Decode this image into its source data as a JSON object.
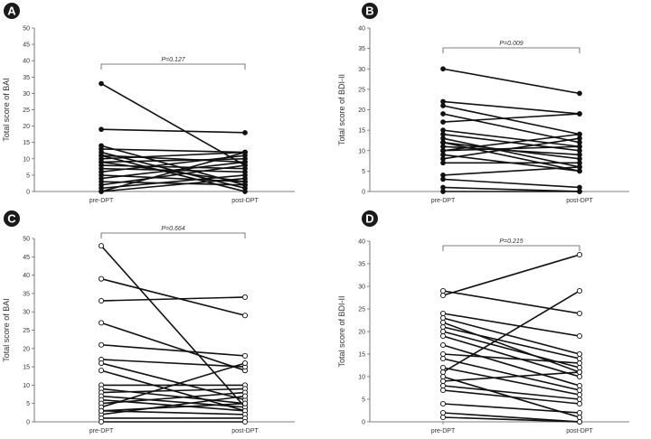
{
  "chart_data": [
    {
      "panel": "A",
      "type": "line",
      "ylabel": "Total score of BAI",
      "categories": [
        "pre-DPT",
        "post-DPT"
      ],
      "ylim": [
        0,
        50
      ],
      "yticks": [
        0,
        5,
        10,
        15,
        20,
        25,
        30,
        35,
        40,
        45,
        50
      ],
      "marker": "filled",
      "p_value": "P=0.127",
      "pairs": [
        [
          33,
          8
        ],
        [
          19,
          18
        ],
        [
          14,
          2
        ],
        [
          13,
          12
        ],
        [
          12,
          1
        ],
        [
          11,
          9
        ],
        [
          10,
          12
        ],
        [
          9,
          10
        ],
        [
          8,
          7
        ],
        [
          7,
          6
        ],
        [
          6,
          11
        ],
        [
          5,
          3
        ],
        [
          4,
          9
        ],
        [
          3,
          2
        ],
        [
          2,
          8
        ],
        [
          1,
          5
        ],
        [
          0,
          12
        ],
        [
          0,
          4
        ],
        [
          11,
          0
        ],
        [
          9,
          3
        ]
      ]
    },
    {
      "panel": "B",
      "type": "line",
      "ylabel": "Total score of BDI-II",
      "categories": [
        "pre-DPT",
        "post-DPT"
      ],
      "ylim": [
        0,
        40
      ],
      "yticks": [
        0,
        5,
        10,
        15,
        20,
        25,
        30,
        35,
        40
      ],
      "marker": "filled",
      "p_value": "P=0.009",
      "pairs": [
        [
          30,
          24
        ],
        [
          22,
          19
        ],
        [
          21,
          14
        ],
        [
          19,
          12
        ],
        [
          17,
          19
        ],
        [
          15,
          11
        ],
        [
          14,
          10
        ],
        [
          13,
          6
        ],
        [
          12,
          8
        ],
        [
          11,
          9
        ],
        [
          10,
          11
        ],
        [
          9,
          5
        ],
        [
          8,
          13
        ],
        [
          7,
          7
        ],
        [
          4,
          6
        ],
        [
          3,
          1
        ],
        [
          0,
          0
        ],
        [
          10,
          14
        ],
        [
          12,
          5
        ],
        [
          1,
          0
        ]
      ]
    },
    {
      "panel": "C",
      "type": "line",
      "ylabel": "Total score of BAI",
      "categories": [
        "pre-DPT",
        "post-DPT"
      ],
      "ylim": [
        0,
        50
      ],
      "yticks": [
        0,
        5,
        10,
        15,
        20,
        25,
        30,
        35,
        40,
        45,
        50
      ],
      "marker": "open",
      "p_value": "P=0.664",
      "pairs": [
        [
          48,
          4
        ],
        [
          39,
          29
        ],
        [
          33,
          34
        ],
        [
          27,
          14
        ],
        [
          21,
          18
        ],
        [
          17,
          15
        ],
        [
          16,
          6
        ],
        [
          14,
          3
        ],
        [
          10,
          10
        ],
        [
          9,
          5
        ],
        [
          8,
          9
        ],
        [
          7,
          4
        ],
        [
          6,
          3
        ],
        [
          5,
          8
        ],
        [
          4,
          16
        ],
        [
          3,
          2
        ],
        [
          2,
          7
        ],
        [
          1,
          1
        ],
        [
          0,
          0
        ],
        [
          3,
          5
        ]
      ]
    },
    {
      "panel": "D",
      "type": "line",
      "ylabel": "Total score of BDI-II",
      "categories": [
        "pre-DPT",
        "post-DPT"
      ],
      "ylim": [
        0,
        40
      ],
      "yticks": [
        0,
        5,
        10,
        15,
        20,
        25,
        30,
        35,
        40
      ],
      "marker": "open",
      "p_value": "P=0.215",
      "pairs": [
        [
          29,
          24
        ],
        [
          28,
          37
        ],
        [
          24,
          19
        ],
        [
          23,
          15
        ],
        [
          22,
          11
        ],
        [
          21,
          14
        ],
        [
          20,
          12
        ],
        [
          19,
          10
        ],
        [
          17,
          8
        ],
        [
          15,
          13
        ],
        [
          14,
          7
        ],
        [
          12,
          6
        ],
        [
          11,
          29
        ],
        [
          10,
          1
        ],
        [
          9,
          11
        ],
        [
          8,
          5
        ],
        [
          7,
          4
        ],
        [
          4,
          2
        ],
        [
          2,
          0
        ],
        [
          1,
          0
        ]
      ]
    }
  ]
}
